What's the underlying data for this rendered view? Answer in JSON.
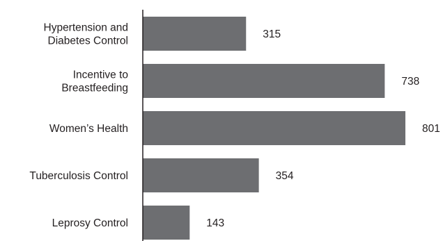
{
  "chart_data": {
    "type": "bar",
    "orientation": "horizontal",
    "categories": [
      [
        "Hypertension and",
        "Diabetes Control"
      ],
      [
        "Incentive to",
        "Breastfeeding"
      ],
      [
        "Women’s Health"
      ],
      [
        "Tuberculosis Control"
      ],
      [
        "Leprosy Control"
      ]
    ],
    "values": [
      315,
      738,
      801,
      354,
      143
    ],
    "title": "",
    "xlabel": "",
    "ylabel": "",
    "xlim": [
      0,
      801
    ],
    "grid": false,
    "legend": "none",
    "bar_color": "#6d6e71",
    "axis_color": "#231f20"
  }
}
